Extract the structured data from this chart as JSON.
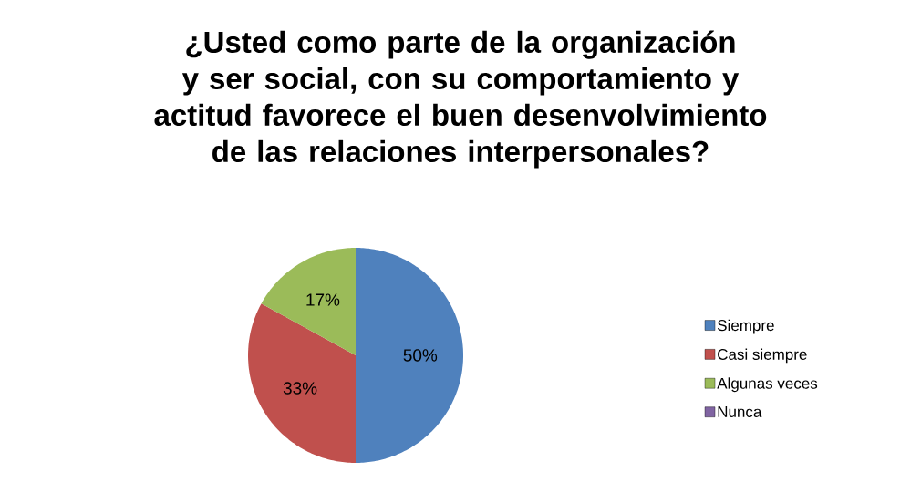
{
  "chart_data": {
    "type": "pie",
    "title": "¿Usted como parte de la organización y ser social, con su comportamiento y actitud favorece el buen desenvolvimiento de las relaciones interpersonales?",
    "categories": [
      "Siempre",
      "Casi siempre",
      "Algunas veces",
      "Nunca"
    ],
    "values": [
      50,
      33,
      17,
      0
    ],
    "colors": [
      "#4f81bd",
      "#c0504d",
      "#9bbb59",
      "#8064a2"
    ],
    "value_labels": [
      "50%",
      "33%",
      "17%",
      null
    ],
    "legend": "right"
  }
}
